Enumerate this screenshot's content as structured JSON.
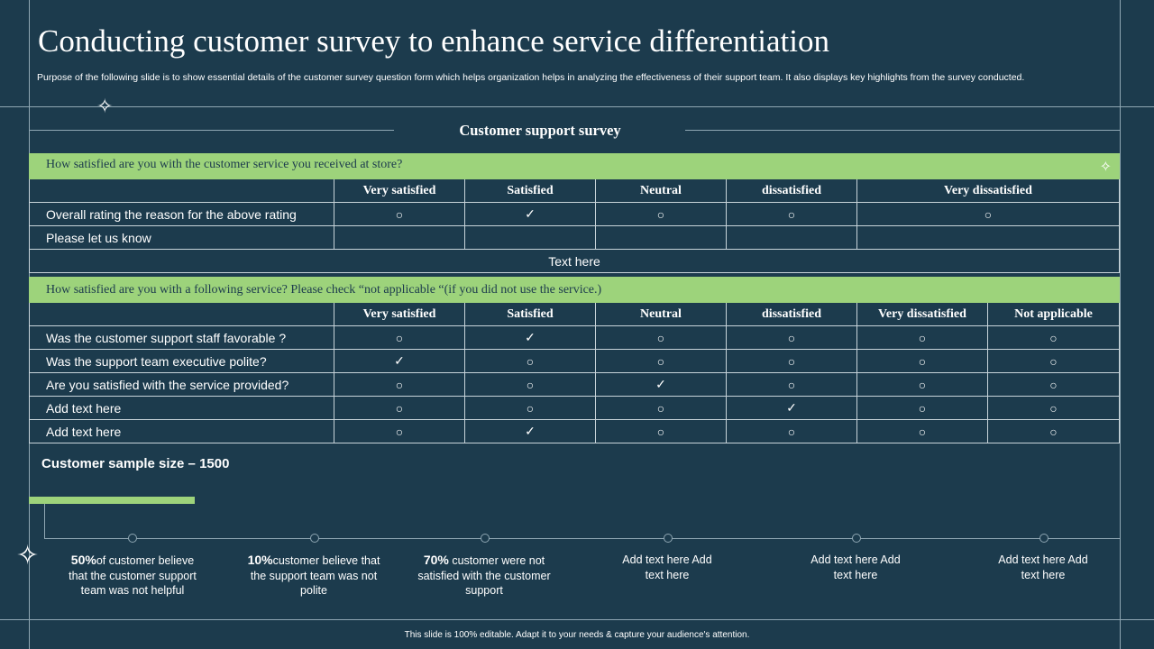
{
  "title": "Conducting customer survey to enhance service differentiation",
  "subtitle": "Purpose of the following slide is to show essential details of the customer survey question form which helps organization helps in analyzing the effectiveness of their support team. It also displays key highlights from  the survey conducted.",
  "survey": {
    "title": "Customer support survey",
    "section1": {
      "question": "How satisfied are you with  the customer service you received at store?",
      "headers": [
        "Very satisfied",
        "Satisfied",
        "Neutral",
        "dissatisfied",
        "Very dissatisfied"
      ],
      "rows": [
        {
          "label": "Overall rating the reason for the above rating",
          "marks": [
            "○",
            "✓",
            "○",
            "○",
            "○"
          ]
        },
        {
          "label": "Please let us know",
          "marks": [
            "",
            "",
            "",
            "",
            ""
          ]
        }
      ],
      "note": "Text here"
    },
    "section2": {
      "question": "How satisfied  are you with  a following  service?  Please check “not  applicable  “(if  you did not use the service.)",
      "headers": [
        "Very satisfied",
        "Satisfied",
        "Neutral",
        "dissatisfied",
        "Very dissatisfied",
        "Not applicable"
      ],
      "rows": [
        {
          "label": "Was the customer support staff favorable ?",
          "marks": [
            "○",
            "✓",
            "○",
            "○",
            "○",
            "○"
          ]
        },
        {
          "label": "Was the support team executive polite?",
          "marks": [
            "✓",
            "○",
            "○",
            "○",
            "○",
            "○"
          ]
        },
        {
          "label": "Are you satisfied with the service provided?",
          "marks": [
            "○",
            "○",
            "✓",
            "○",
            "○",
            "○"
          ]
        },
        {
          "label": "Add text here",
          "marks": [
            "○",
            "○",
            "○",
            "✓",
            "○",
            "○"
          ]
        },
        {
          "label": "Add text here",
          "marks": [
            "○",
            "✓",
            "○",
            "○",
            "○",
            "○"
          ]
        }
      ]
    }
  },
  "sample_size": "Customer sample size – 1500",
  "stats": [
    {
      "value": "50%",
      "text": "of customer believe  that the customer support team was not helpful"
    },
    {
      "value": "10%",
      "text": "customer believe that the support team was not polite"
    },
    {
      "value": "70%",
      "text": " customer were not satisfied with the customer support"
    },
    {
      "value": "",
      "text": "Add text here Add text here"
    },
    {
      "value": "",
      "text": "Add text here Add text here"
    },
    {
      "value": "",
      "text": "Add text here Add text here"
    }
  ],
  "footer": "This slide is 100% editable.  Adapt it to your needs & capture your audience's attention."
}
